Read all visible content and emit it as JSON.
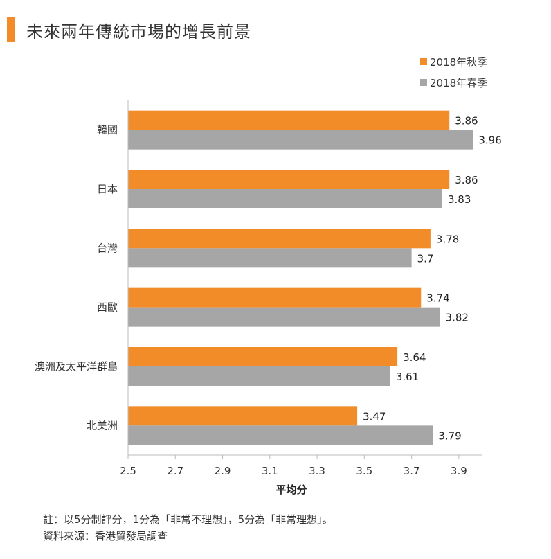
{
  "title": "未來兩年傳統市場的增長前景",
  "colors": {
    "accent": "#f28c28",
    "series1": "#f28c28",
    "series2": "#a6a6a6"
  },
  "chart_data": {
    "type": "bar",
    "orientation": "horizontal",
    "categories": [
      "韓國",
      "日本",
      "台灣",
      "西歐",
      "澳洲及太平洋群島",
      "北美洲"
    ],
    "series": [
      {
        "name": "2018年秋季",
        "color": "#f28c28",
        "values": [
          3.86,
          3.86,
          3.78,
          3.74,
          3.64,
          3.47
        ]
      },
      {
        "name": "2018年春季",
        "color": "#a6a6a6",
        "values": [
          3.96,
          3.83,
          3.7,
          3.82,
          3.61,
          3.79
        ]
      }
    ],
    "xlim": [
      2.5,
      4.0
    ],
    "xticks": [
      "2.5",
      "2.7",
      "2.9",
      "3.1",
      "3.3",
      "3.5",
      "3.7",
      "3.9"
    ],
    "xlabel": "平均分",
    "grid": false,
    "legend_position": "top-right"
  },
  "footnotes": [
    "註：以5分制評分，1分為「非常不理想」，5分為「非常理想」。",
    "資料來源：香港貿發局調查"
  ]
}
